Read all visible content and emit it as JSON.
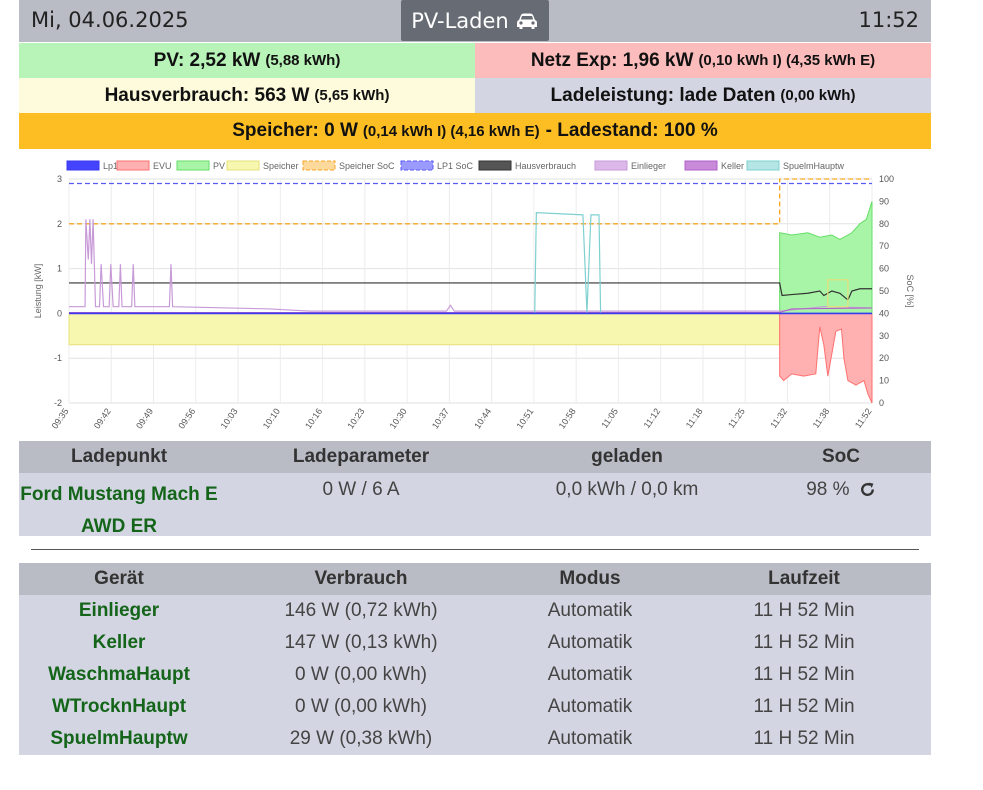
{
  "header": {
    "date": "Mi, 04.06.2025",
    "mode_label": "PV-Laden",
    "mode_icon": "car-icon",
    "time": "11:52"
  },
  "summary": {
    "pv_label": "PV: 2,52 kW",
    "pv_sub": "(5,88 kWh)",
    "netz_label": "Netz Exp: 1,96 kW",
    "netz_sub": "(0,10 kWh I) (4,35 kWh E)",
    "haus_label": "Hausverbrauch: 563 W",
    "haus_sub": "(5,65 kWh)",
    "lade_label": "Ladeleistung: lade Daten",
    "lade_sub": "(0,00 kWh)",
    "speicher_label": "Speicher: 0 W",
    "speicher_sub": "(0,14 kWh I) (4,16 kWh E)",
    "speicher_tail": "- Ladestand: 100 %"
  },
  "colors": {
    "pv": "#b8f3b8",
    "netz": "#fdbcbc",
    "haus": "#fefbdc",
    "lade": "#d3d6e2",
    "speicher": "#fdbe23",
    "header": "#b9bcc5",
    "name_green": "#14651a"
  },
  "chart_data": {
    "type": "line",
    "legend": [
      {
        "name": "Lp1",
        "color": "#3a3af0",
        "fill": "#4444ff"
      },
      {
        "name": "EVU",
        "color": "#ff7070",
        "fill": "#ffb0b0"
      },
      {
        "name": "PV",
        "color": "#66dd66",
        "fill": "#a8f5a8"
      },
      {
        "name": "Speicher",
        "color": "#e6e07a",
        "fill": "#f7f7b0"
      },
      {
        "name": "Speicher SoC",
        "color": "#f5a623",
        "fill": "#fdd99b",
        "dashed": true
      },
      {
        "name": "LP1 SoC",
        "color": "#5a5af5",
        "fill": "#9a9aff",
        "dashed": true
      },
      {
        "name": "Hausverbrauch",
        "color": "#333333",
        "fill": "#555555"
      },
      {
        "name": "Einlieger",
        "color": "#c89ad8",
        "fill": "#dcb8e8"
      },
      {
        "name": "Keller",
        "color": "#b060c8",
        "fill": "#c98ad9"
      },
      {
        "name": "SpuelmHauptw",
        "color": "#7fd0d0",
        "fill": "#b5e5e5"
      }
    ],
    "x_ticks": [
      "09:35",
      "09:42",
      "09:49",
      "09:56",
      "10:03",
      "10:10",
      "10:16",
      "10:23",
      "10:30",
      "10:37",
      "10:44",
      "10:51",
      "10:58",
      "11:05",
      "11:12",
      "11:18",
      "11:25",
      "11:32",
      "11:38",
      "11:52"
    ],
    "y_left_ticks": [
      "3",
      "2",
      "1",
      "0",
      "-1",
      "-2"
    ],
    "y_left_range": [
      -2,
      3
    ],
    "y_right_ticks": [
      "100",
      "90",
      "80",
      "70",
      "60",
      "50",
      "40",
      "30",
      "20",
      "10",
      "0"
    ],
    "y_right_range": [
      0,
      100
    ],
    "ylabel_left": "Leistung [kW]",
    "ylabel_right": "SoC [%]",
    "grid": true,
    "legend_position": "top"
  },
  "ladepunkt_table": {
    "headers": [
      "Ladepunkt",
      "Ladeparameter",
      "geladen",
      "SoC"
    ],
    "rows": [
      {
        "name": "Ford Mustang Mach E AWD ER",
        "param": "0 W / 6 A",
        "geladen": "0,0 kWh / 0,0 km",
        "soc": "98 %",
        "soc_icon": "refresh-icon"
      }
    ]
  },
  "geraete_table": {
    "headers": [
      "Gerät",
      "Verbrauch",
      "Modus",
      "Laufzeit"
    ],
    "rows": [
      {
        "name": "Einlieger",
        "verbrauch": "146 W (0,72 kWh)",
        "modus": "Automatik",
        "laufzeit": "11 H 52 Min"
      },
      {
        "name": "Keller",
        "verbrauch": "147 W (0,13 kWh)",
        "modus": "Automatik",
        "laufzeit": "11 H 52 Min"
      },
      {
        "name": "WaschmaHaupt",
        "verbrauch": "0 W (0,00 kWh)",
        "modus": "Automatik",
        "laufzeit": "11 H 52 Min"
      },
      {
        "name": "WTrocknHaupt",
        "verbrauch": "0 W (0,00 kWh)",
        "modus": "Automatik",
        "laufzeit": "11 H 52 Min"
      },
      {
        "name": "SpuelmHauptw",
        "verbrauch": "29 W (0,38 kWh)",
        "modus": "Automatik",
        "laufzeit": "11 H 52 Min"
      }
    ]
  }
}
